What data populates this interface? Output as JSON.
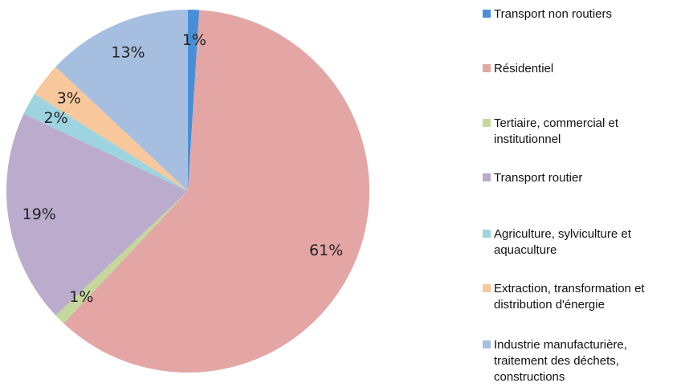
{
  "chart_data": {
    "type": "pie",
    "categories": [
      "Transport non routiers",
      "Résidentiel",
      "Tertiaire, commercial et institutionnel",
      "Transport routier",
      "Agriculture, sylviculture et aquaculture",
      "Extraction, transformation et distribution d'énergie",
      "Industrie manufacturière, traitement des déchets, constructions"
    ],
    "values": [
      1,
      61,
      1,
      19,
      2,
      3,
      13
    ],
    "value_labels": [
      "1%",
      "61%",
      "1%",
      "19%",
      "2%",
      "3%",
      "13%"
    ],
    "colors": [
      "#4a8fd6",
      "#e3a6a5",
      "#c4d79c",
      "#bbabcd",
      "#9ed4df",
      "#f8c89c",
      "#a6bfe0"
    ],
    "legend": "right"
  }
}
